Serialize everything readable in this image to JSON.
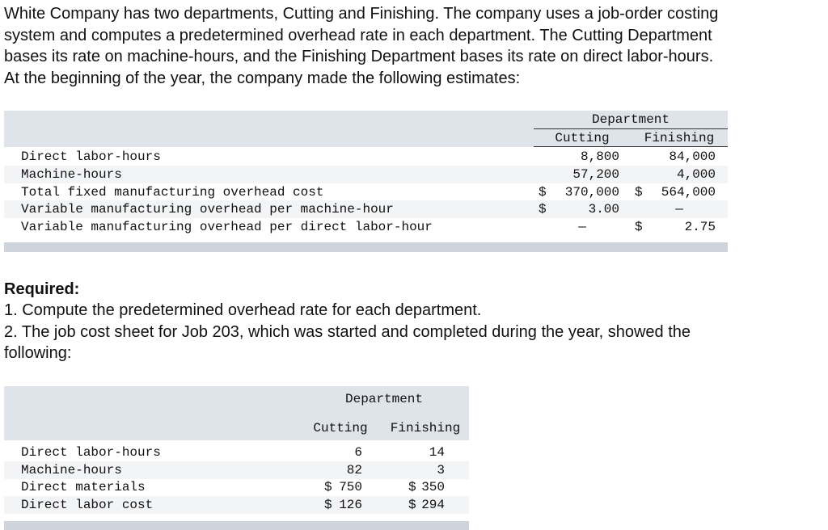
{
  "intro": [
    "White Company has two departments, Cutting and Finishing. The company uses a job-order costing",
    "system and computes a predetermined overhead rate in each department. The Cutting Department",
    "bases its rate on machine-hours, and the Finishing Department bases its rate on direct labor-hours.",
    "At the beginning of the year, the company made the following estimates:"
  ],
  "table1": {
    "group_header": "Department",
    "columns": [
      "Cutting",
      "Finishing"
    ],
    "rows": [
      {
        "label": "Direct labor-hours",
        "cutting": [
          "8,800"
        ],
        "finishing": [
          "84,000"
        ]
      },
      {
        "label": "Machine-hours",
        "cutting": [
          "57,200"
        ],
        "finishing": [
          "4,000"
        ]
      },
      {
        "label": "Total fixed manufacturing overhead cost",
        "cutting": [
          "$",
          "370,000"
        ],
        "finishing": [
          "$",
          "564,000"
        ]
      },
      {
        "label": "Variable manufacturing overhead per machine-hour",
        "cutting": [
          "$",
          "3.00"
        ],
        "finishing": [
          "—"
        ]
      },
      {
        "label": "Variable manufacturing overhead per direct labor-hour",
        "cutting": [
          "—"
        ],
        "finishing": [
          "$",
          "2.75"
        ]
      }
    ]
  },
  "required": {
    "heading": "Required:",
    "items": [
      "1. Compute the predetermined overhead rate for each department.",
      "2. The job cost sheet for Job 203, which was started and completed during the year, showed the",
      "following:"
    ]
  },
  "table2": {
    "group_header": "Department",
    "columns": [
      "Cutting",
      "Finishing"
    ],
    "rows": [
      {
        "label": "Direct labor-hours",
        "cutting": [
          "6"
        ],
        "finishing": [
          "14"
        ]
      },
      {
        "label": "Machine-hours",
        "cutting": [
          "82"
        ],
        "finishing": [
          "3"
        ]
      },
      {
        "label": "Direct materials",
        "cutting": [
          "$",
          "750"
        ],
        "finishing": [
          "$",
          "350"
        ]
      },
      {
        "label": "Direct labor cost",
        "cutting": [
          "$",
          "126"
        ],
        "finishing": [
          "$",
          "294"
        ]
      }
    ]
  }
}
